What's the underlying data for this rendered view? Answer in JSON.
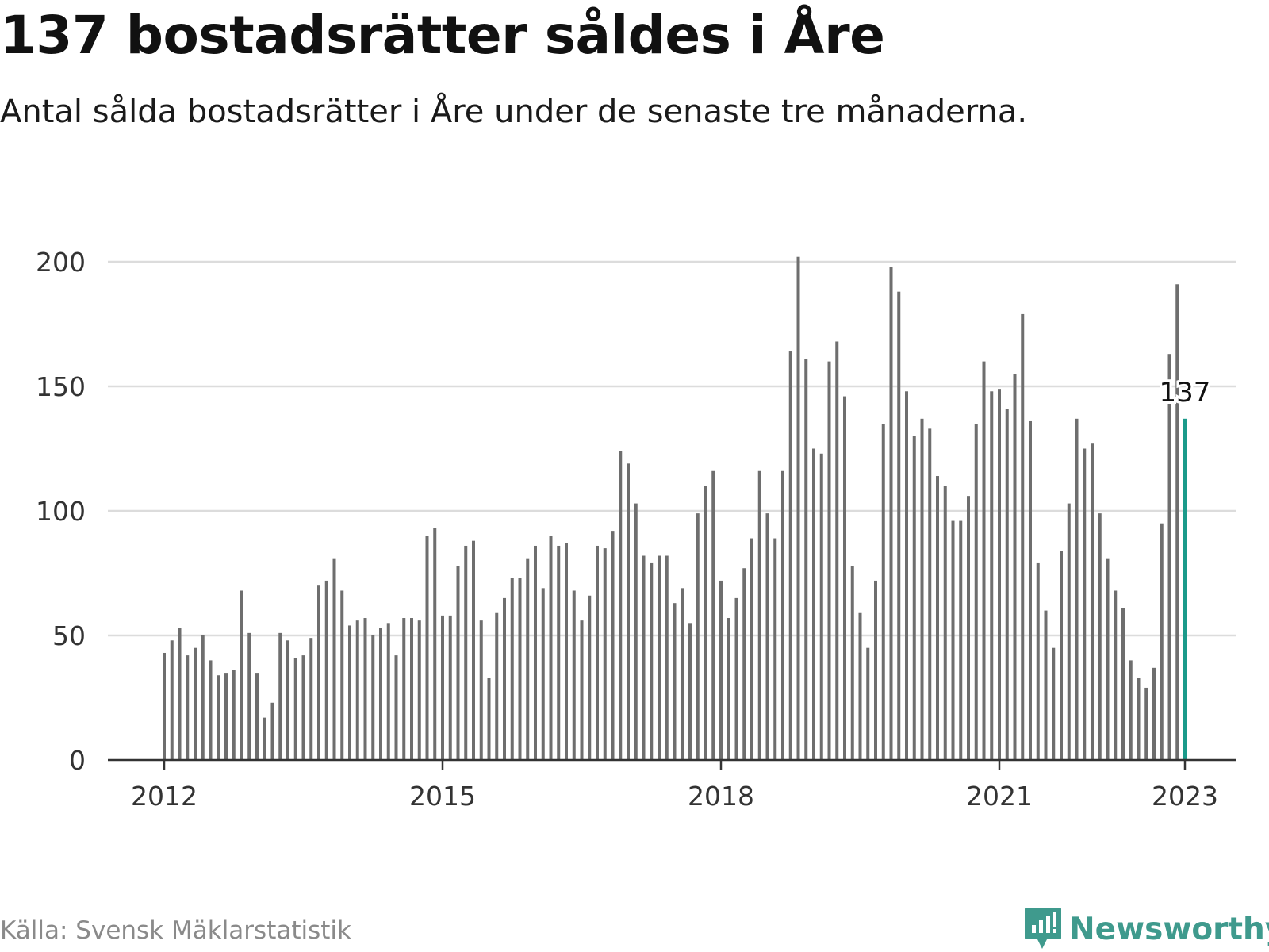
{
  "title": "137 bostadsrätter såldes i Åre",
  "subtitle": "Antal sålda bostadsrätter i Åre under de senaste tre månaderna.",
  "source": "Källa: Svensk Mäklarstatistik",
  "brand": "Newsworthy",
  "colors": {
    "bar": "#6e6e6e",
    "highlight": "#1a9a8a",
    "grid": "#dcdcdc",
    "axis": "#333333",
    "brand": "#3f9a8d"
  },
  "chart_data": {
    "type": "bar",
    "xlabel": "",
    "ylabel": "",
    "ylim": [
      0,
      200
    ],
    "yticks": [
      0,
      50,
      100,
      150,
      200
    ],
    "xticks": [
      {
        "label": "2012",
        "index": 0
      },
      {
        "label": "2015",
        "index": 36
      },
      {
        "label": "2018",
        "index": 72
      },
      {
        "label": "2021",
        "index": 108
      },
      {
        "label": "2023",
        "index": 132
      }
    ],
    "start": "2012-01",
    "interval": "month",
    "highlight_index": 132,
    "highlight_label": "137",
    "values": [
      43,
      48,
      53,
      42,
      45,
      50,
      40,
      34,
      35,
      36,
      68,
      51,
      35,
      17,
      23,
      51,
      48,
      41,
      42,
      49,
      70,
      72,
      81,
      68,
      54,
      56,
      57,
      50,
      53,
      55,
      42,
      57,
      57,
      56,
      90,
      93,
      58,
      58,
      78,
      86,
      88,
      56,
      33,
      59,
      65,
      73,
      73,
      81,
      86,
      69,
      90,
      86,
      87,
      68,
      56,
      66,
      86,
      85,
      92,
      124,
      119,
      103,
      82,
      79,
      82,
      82,
      63,
      69,
      55,
      99,
      110,
      116,
      72,
      57,
      65,
      77,
      89,
      116,
      99,
      89,
      116,
      164,
      202,
      161,
      125,
      123,
      160,
      168,
      146,
      78,
      59,
      45,
      72,
      135,
      198,
      188,
      148,
      130,
      137,
      133,
      114,
      110,
      96,
      96,
      106,
      135,
      160,
      148,
      149,
      141,
      155,
      179,
      136,
      79,
      60,
      45,
      84,
      103,
      137,
      125,
      127,
      99,
      81,
      68,
      61,
      40,
      33,
      29,
      37,
      95,
      163,
      191,
      137
    ]
  }
}
